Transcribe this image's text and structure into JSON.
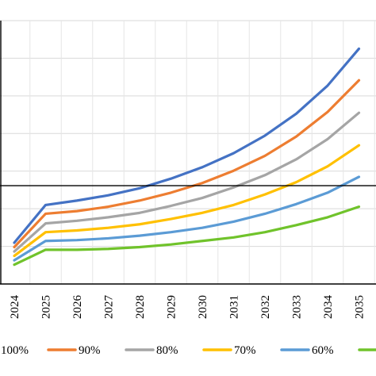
{
  "chart_data": {
    "type": "line",
    "title": "",
    "xlabel": "",
    "ylabel": "",
    "x": [
      "2024",
      "2025",
      "2026",
      "2027",
      "2028",
      "2029",
      "2030",
      "2031",
      "2032",
      "2033",
      "2034",
      "2035"
    ],
    "y_tick_labels_visible": false,
    "grid": true,
    "legend_position": "bottom",
    "reference_line": {
      "orientation": "horizontal",
      "color": "#000000"
    },
    "series": [
      {
        "name": "100%",
        "color": "#4472C4",
        "values": [
          47,
          90,
          95,
          101,
          109,
          120,
          133,
          149,
          169,
          194,
          226,
          268
        ]
      },
      {
        "name": "90%",
        "color": "#ED7D31",
        "values": [
          42,
          80,
          83,
          88,
          95,
          104,
          115,
          129,
          146,
          168,
          196,
          232
        ]
      },
      {
        "name": "80%",
        "color": "#A5A5A5",
        "values": [
          37,
          69,
          72,
          76,
          81,
          89,
          98,
          110,
          124,
          142,
          165,
          195
        ]
      },
      {
        "name": "70%",
        "color": "#FFC000",
        "values": [
          32,
          59,
          61,
          64,
          68,
          74,
          81,
          90,
          102,
          116,
          134,
          158
        ]
      },
      {
        "name": "60%",
        "color": "#5B9BD5",
        "values": [
          27,
          49,
          50,
          52,
          55,
          59,
          64,
          71,
          80,
          91,
          104,
          122
        ]
      },
      {
        "name": "",
        "color": "#70C32B",
        "values": [
          22,
          39,
          39,
          40,
          42,
          45,
          49,
          53,
          59,
          67,
          76,
          88
        ]
      }
    ],
    "ylim": [
      0,
      300
    ],
    "hline_value": 112
  }
}
